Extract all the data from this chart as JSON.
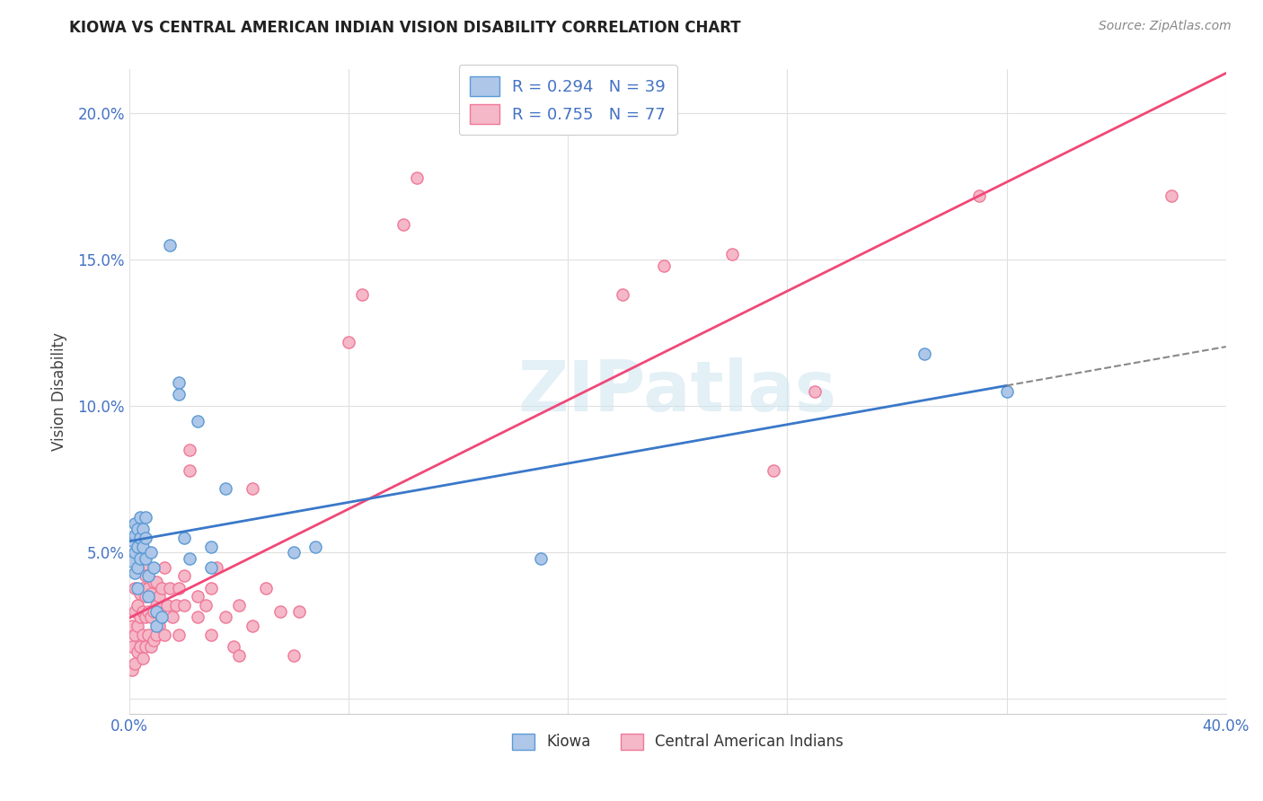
{
  "title": "KIOWA VS CENTRAL AMERICAN INDIAN VISION DISABILITY CORRELATION CHART",
  "source": "Source: ZipAtlas.com",
  "ylabel": "Vision Disability",
  "watermark": "ZIPatlas",
  "xlim": [
    0.0,
    0.4
  ],
  "ylim": [
    -0.005,
    0.215
  ],
  "xticks": [
    0.0,
    0.08,
    0.16,
    0.24,
    0.32,
    0.4
  ],
  "xticklabels": [
    "0.0%",
    "",
    "",
    "",
    "",
    "40.0%"
  ],
  "yticks": [
    0.0,
    0.05,
    0.1,
    0.15,
    0.2
  ],
  "yticklabels": [
    "",
    "5.0%",
    "10.0%",
    "15.0%",
    "20.0%"
  ],
  "kiowa_color": "#aec6e8",
  "kiowa_edge": "#5b9bd5",
  "central_color": "#f4b8c8",
  "central_edge": "#f07898",
  "kiowa_line_color": "#3a78c9",
  "central_line_color": "#f04878",
  "kiowa_R": 0.294,
  "kiowa_N": 39,
  "central_R": 0.755,
  "central_N": 77,
  "kiowa_scatter": [
    [
      0.001,
      0.054
    ],
    [
      0.001,
      0.047
    ],
    [
      0.002,
      0.06
    ],
    [
      0.002,
      0.056
    ],
    [
      0.002,
      0.05
    ],
    [
      0.002,
      0.043
    ],
    [
      0.003,
      0.058
    ],
    [
      0.003,
      0.052
    ],
    [
      0.003,
      0.045
    ],
    [
      0.003,
      0.038
    ],
    [
      0.004,
      0.062
    ],
    [
      0.004,
      0.055
    ],
    [
      0.004,
      0.048
    ],
    [
      0.005,
      0.058
    ],
    [
      0.005,
      0.052
    ],
    [
      0.006,
      0.062
    ],
    [
      0.006,
      0.055
    ],
    [
      0.006,
      0.048
    ],
    [
      0.007,
      0.042
    ],
    [
      0.007,
      0.035
    ],
    [
      0.008,
      0.05
    ],
    [
      0.009,
      0.045
    ],
    [
      0.01,
      0.03
    ],
    [
      0.01,
      0.025
    ],
    [
      0.012,
      0.028
    ],
    [
      0.015,
      0.155
    ],
    [
      0.018,
      0.108
    ],
    [
      0.018,
      0.104
    ],
    [
      0.02,
      0.055
    ],
    [
      0.022,
      0.048
    ],
    [
      0.025,
      0.095
    ],
    [
      0.03,
      0.052
    ],
    [
      0.03,
      0.045
    ],
    [
      0.035,
      0.072
    ],
    [
      0.06,
      0.05
    ],
    [
      0.068,
      0.052
    ],
    [
      0.15,
      0.048
    ],
    [
      0.29,
      0.118
    ],
    [
      0.32,
      0.105
    ]
  ],
  "central_scatter": [
    [
      0.001,
      0.01
    ],
    [
      0.001,
      0.018
    ],
    [
      0.001,
      0.025
    ],
    [
      0.002,
      0.012
    ],
    [
      0.002,
      0.022
    ],
    [
      0.002,
      0.03
    ],
    [
      0.002,
      0.038
    ],
    [
      0.003,
      0.016
    ],
    [
      0.003,
      0.025
    ],
    [
      0.003,
      0.032
    ],
    [
      0.004,
      0.018
    ],
    [
      0.004,
      0.028
    ],
    [
      0.004,
      0.036
    ],
    [
      0.005,
      0.014
    ],
    [
      0.005,
      0.022
    ],
    [
      0.005,
      0.03
    ],
    [
      0.005,
      0.038
    ],
    [
      0.005,
      0.045
    ],
    [
      0.006,
      0.018
    ],
    [
      0.006,
      0.028
    ],
    [
      0.006,
      0.035
    ],
    [
      0.006,
      0.042
    ],
    [
      0.007,
      0.022
    ],
    [
      0.007,
      0.03
    ],
    [
      0.007,
      0.038
    ],
    [
      0.008,
      0.018
    ],
    [
      0.008,
      0.028
    ],
    [
      0.008,
      0.036
    ],
    [
      0.009,
      0.02
    ],
    [
      0.009,
      0.03
    ],
    [
      0.009,
      0.04
    ],
    [
      0.01,
      0.022
    ],
    [
      0.01,
      0.032
    ],
    [
      0.01,
      0.04
    ],
    [
      0.011,
      0.025
    ],
    [
      0.011,
      0.035
    ],
    [
      0.012,
      0.028
    ],
    [
      0.012,
      0.038
    ],
    [
      0.013,
      0.022
    ],
    [
      0.013,
      0.045
    ],
    [
      0.014,
      0.032
    ],
    [
      0.015,
      0.038
    ],
    [
      0.016,
      0.028
    ],
    [
      0.017,
      0.032
    ],
    [
      0.018,
      0.022
    ],
    [
      0.018,
      0.038
    ],
    [
      0.02,
      0.042
    ],
    [
      0.02,
      0.032
    ],
    [
      0.022,
      0.085
    ],
    [
      0.022,
      0.078
    ],
    [
      0.025,
      0.035
    ],
    [
      0.025,
      0.028
    ],
    [
      0.028,
      0.032
    ],
    [
      0.03,
      0.038
    ],
    [
      0.03,
      0.022
    ],
    [
      0.032,
      0.045
    ],
    [
      0.035,
      0.028
    ],
    [
      0.038,
      0.018
    ],
    [
      0.04,
      0.032
    ],
    [
      0.04,
      0.015
    ],
    [
      0.045,
      0.025
    ],
    [
      0.045,
      0.072
    ],
    [
      0.05,
      0.038
    ],
    [
      0.055,
      0.03
    ],
    [
      0.06,
      0.015
    ],
    [
      0.062,
      0.03
    ],
    [
      0.08,
      0.122
    ],
    [
      0.085,
      0.138
    ],
    [
      0.1,
      0.162
    ],
    [
      0.105,
      0.178
    ],
    [
      0.18,
      0.138
    ],
    [
      0.195,
      0.148
    ],
    [
      0.22,
      0.152
    ],
    [
      0.235,
      0.078
    ],
    [
      0.25,
      0.105
    ],
    [
      0.31,
      0.172
    ],
    [
      0.38,
      0.172
    ]
  ]
}
